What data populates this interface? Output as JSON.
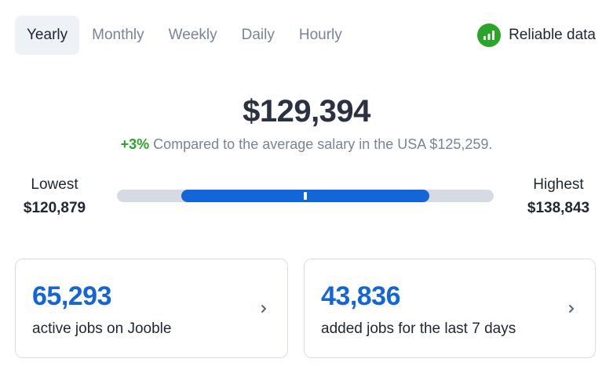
{
  "tabs": [
    {
      "label": "Yearly",
      "active": true
    },
    {
      "label": "Monthly",
      "active": false
    },
    {
      "label": "Weekly",
      "active": false
    },
    {
      "label": "Daily",
      "active": false
    },
    {
      "label": "Hourly",
      "active": false
    }
  ],
  "reliable": {
    "label": "Reliable data",
    "icon": "bar-chart-icon",
    "color": "#2aa52a"
  },
  "salary": {
    "value": "$129,394"
  },
  "comparison": {
    "percent": "+3%",
    "text": "Compared to the average salary in the USA $125,259."
  },
  "range": {
    "low_label": "Lowest",
    "low_value": "$120,879",
    "high_label": "Highest",
    "high_value": "$138,843",
    "fill_start_fraction": 0.17,
    "fill_end_fraction": 0.83,
    "marker_fraction": 0.5
  },
  "cards": [
    {
      "number": "65,293",
      "description": "active jobs on Jooble"
    },
    {
      "number": "43,836",
      "description": "added jobs for the last 7 days"
    }
  ],
  "colors": {
    "accent": "#1466d8",
    "positive": "#2aa52a",
    "muted": "#79849a"
  }
}
